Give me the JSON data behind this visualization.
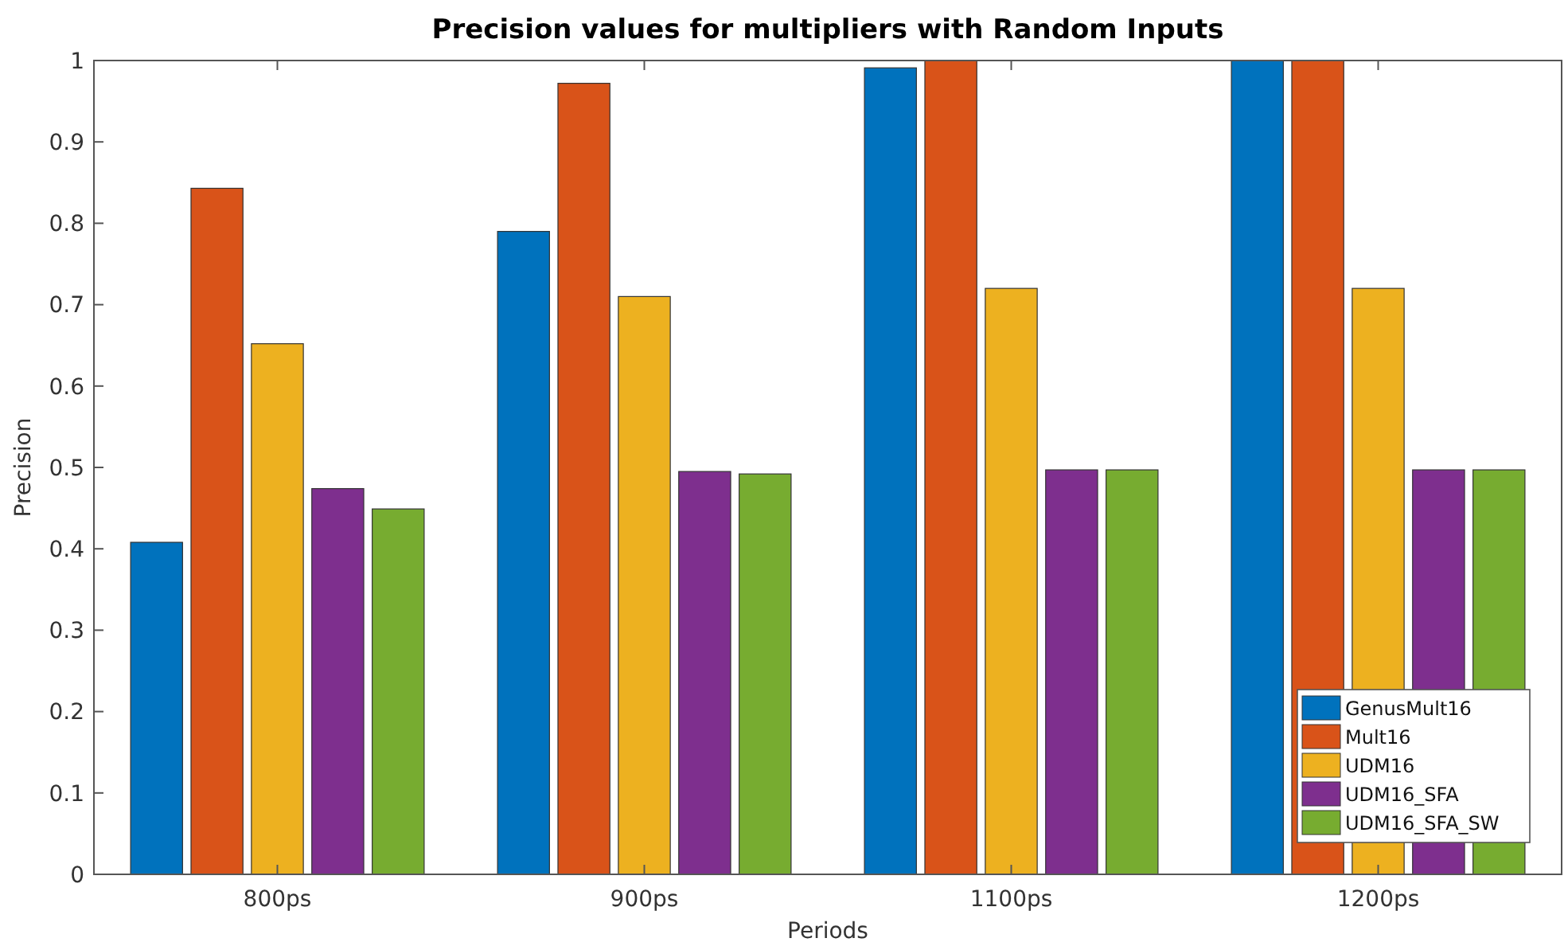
{
  "chart_data": {
    "type": "bar",
    "title": "Precision values for multipliers with Random Inputs",
    "xlabel": "Periods",
    "ylabel": "Precision",
    "categories": [
      "800ps",
      "900ps",
      "1100ps",
      "1200ps"
    ],
    "series": [
      {
        "name": "GenusMult16",
        "color": "#0072bd",
        "values": [
          0.408,
          0.79,
          0.991,
          1
        ]
      },
      {
        "name": "Mult16",
        "color": "#d95319",
        "values": [
          0.843,
          0.972,
          1,
          1
        ]
      },
      {
        "name": "UDM16",
        "color": "#edb120",
        "values": [
          0.652,
          0.71,
          0.72,
          0.72
        ]
      },
      {
        "name": "UDM16_SFA",
        "color": "#7e2f8e",
        "values": [
          0.474,
          0.495,
          0.497,
          0.497
        ]
      },
      {
        "name": "UDM16_SFA_SW",
        "color": "#77ac30",
        "values": [
          0.449,
          0.492,
          0.497,
          0.497
        ]
      }
    ],
    "ylim": [
      0,
      1
    ],
    "yticks": [
      0,
      0.1,
      0.2,
      0.3,
      0.4,
      0.5,
      0.6,
      0.7,
      0.8,
      0.9,
      1
    ],
    "grid": false,
    "legend": "bottom right"
  }
}
